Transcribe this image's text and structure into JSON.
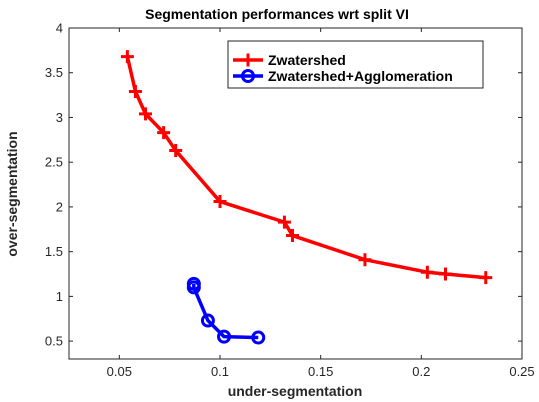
{
  "chart_data": {
    "type": "line",
    "title": "Segmentation performances wrt split VI",
    "xlabel": "under-segmentation",
    "ylabel": "over-segmentation",
    "xlim": [
      0.025,
      0.25
    ],
    "ylim": [
      0.3,
      4.0
    ],
    "xticks": [
      "0.05",
      "0.1",
      "0.15",
      "0.2",
      "0.25"
    ],
    "xtick_values": [
      0.05,
      0.1,
      0.15,
      0.2,
      0.25
    ],
    "yticks": [
      "0.5",
      "1",
      "1.5",
      "2",
      "2.5",
      "3",
      "3.5",
      "4"
    ],
    "ytick_values": [
      0.5,
      1,
      1.5,
      2,
      2.5,
      3,
      3.5,
      4
    ],
    "grid": false,
    "legend_position": "top-right",
    "series": [
      {
        "name": "Zwatershed",
        "color": "#ff0000",
        "marker": "plus",
        "x": [
          0.054,
          0.058,
          0.063,
          0.072,
          0.078,
          0.1,
          0.132,
          0.136,
          0.172,
          0.203,
          0.212,
          0.232
        ],
        "y": [
          3.68,
          3.29,
          3.04,
          2.83,
          2.63,
          2.06,
          1.83,
          1.68,
          1.41,
          1.27,
          1.25,
          1.21
        ]
      },
      {
        "name": "Zwatershed+Agglomeration",
        "color": "#0000ff",
        "marker": "circle",
        "x": [
          0.087,
          0.087,
          0.094,
          0.102,
          0.119
        ],
        "y": [
          1.14,
          1.1,
          0.73,
          0.55,
          0.54
        ]
      }
    ]
  }
}
